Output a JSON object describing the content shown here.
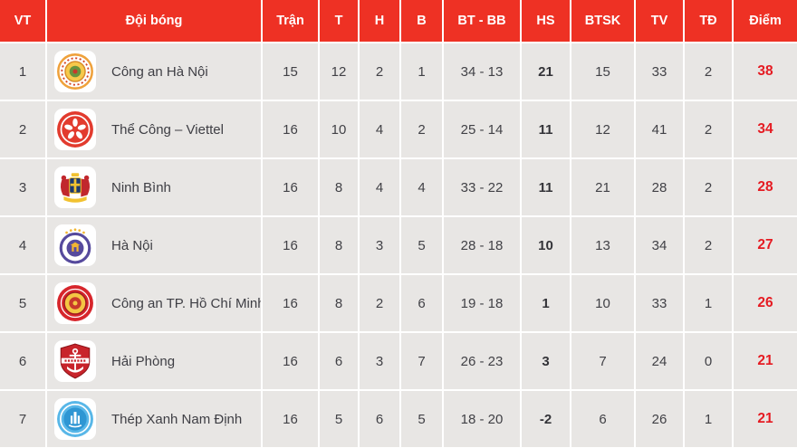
{
  "colors": {
    "header_bg": "#EE3124",
    "row_bg": "#E8E6E4",
    "points_red": "#E51B22",
    "body_text": "#3E3E44"
  },
  "table": {
    "columns": [
      {
        "key": "pos",
        "label": "VT"
      },
      {
        "key": "team",
        "label": "Đội bóng"
      },
      {
        "key": "played",
        "label": "Trận"
      },
      {
        "key": "won",
        "label": "T"
      },
      {
        "key": "drawn",
        "label": "H"
      },
      {
        "key": "lost",
        "label": "B"
      },
      {
        "key": "goals",
        "label": "BT - BB"
      },
      {
        "key": "gd",
        "label": "HS"
      },
      {
        "key": "btsk",
        "label": "BTSK"
      },
      {
        "key": "tv",
        "label": "TV"
      },
      {
        "key": "td",
        "label": "TĐ"
      },
      {
        "key": "points",
        "label": "Điểm"
      }
    ],
    "rows": [
      {
        "pos": "1",
        "team": "Công an Hà Nội",
        "logo": "cong-an-ha-noi-crest-icon",
        "played": "15",
        "won": "12",
        "drawn": "2",
        "lost": "1",
        "goals": "34 - 13",
        "gd": "21",
        "btsk": "15",
        "tv": "33",
        "td": "2",
        "points": "38"
      },
      {
        "pos": "2",
        "team": "Thể Công – Viettel",
        "logo": "the-cong-viettel-crest-icon",
        "played": "16",
        "won": "10",
        "drawn": "4",
        "lost": "2",
        "goals": "25 - 14",
        "gd": "11",
        "btsk": "12",
        "tv": "41",
        "td": "2",
        "points": "34"
      },
      {
        "pos": "3",
        "team": "Ninh Bình",
        "logo": "ninh-binh-crest-icon",
        "played": "16",
        "won": "8",
        "drawn": "4",
        "lost": "4",
        "goals": "33 - 22",
        "gd": "11",
        "btsk": "21",
        "tv": "28",
        "td": "2",
        "points": "28"
      },
      {
        "pos": "4",
        "team": "Hà Nội",
        "logo": "ha-noi-crest-icon",
        "played": "16",
        "won": "8",
        "drawn": "3",
        "lost": "5",
        "goals": "28 - 18",
        "gd": "10",
        "btsk": "13",
        "tv": "34",
        "td": "2",
        "points": "27"
      },
      {
        "pos": "5",
        "team": "Công an TP. Hồ Chí Minh",
        "logo": "cong-an-tphcm-crest-icon",
        "played": "16",
        "won": "8",
        "drawn": "2",
        "lost": "6",
        "goals": "19 - 18",
        "gd": "1",
        "btsk": "10",
        "tv": "33",
        "td": "1",
        "points": "26"
      },
      {
        "pos": "6",
        "team": "Hải Phòng",
        "logo": "hai-phong-crest-icon",
        "played": "16",
        "won": "6",
        "drawn": "3",
        "lost": "7",
        "goals": "26 - 23",
        "gd": "3",
        "btsk": "7",
        "tv": "24",
        "td": "0",
        "points": "21"
      },
      {
        "pos": "7",
        "team": "Thép Xanh Nam Định",
        "logo": "thep-xanh-nam-dinh-crest-icon",
        "played": "16",
        "won": "5",
        "drawn": "6",
        "lost": "5",
        "goals": "18 - 20",
        "gd": "-2",
        "btsk": "6",
        "tv": "26",
        "td": "1",
        "points": "21"
      }
    ]
  }
}
